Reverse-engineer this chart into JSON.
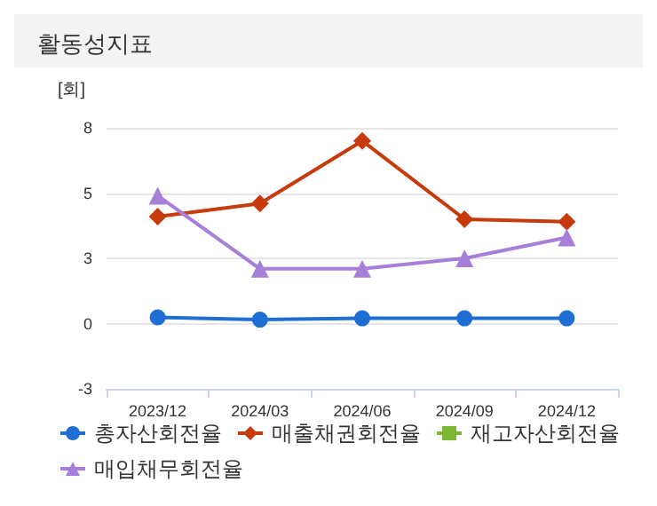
{
  "chart_data": {
    "type": "line",
    "title": "활동성지표",
    "ylabel": "[회]",
    "categories": [
      "2023/12",
      "2024/03",
      "2024/06",
      "2024/09",
      "2024/12"
    ],
    "series": [
      {
        "name": "총자산회전율",
        "color": "#1f6ed4",
        "marker": "circle",
        "values": [
          0.24,
          0.15,
          0.2,
          0.2,
          0.2
        ]
      },
      {
        "name": "매출채권회전율",
        "color": "#c63a0c",
        "marker": "diamond",
        "values": [
          4.1,
          4.6,
          7.0,
          4.0,
          3.9
        ]
      },
      {
        "name": "재고자산회전율",
        "color": "#7cb82f",
        "marker": "square",
        "values": [
          null,
          null,
          null,
          null,
          null
        ]
      },
      {
        "name": "매입채무회전율",
        "color": "#a77fd9",
        "marker": "triangle",
        "values": [
          4.9,
          2.1,
          2.1,
          2.5,
          3.3
        ]
      }
    ],
    "ylim": [
      -2.5,
      7.5
    ],
    "yticks": [
      {
        "value": -2.5,
        "label": "-3"
      },
      {
        "value": 0,
        "label": "0"
      },
      {
        "value": 2.5,
        "label": "3"
      },
      {
        "value": 5,
        "label": "5"
      },
      {
        "value": 7.5,
        "label": "8"
      }
    ],
    "grid": "y",
    "legend": "bottom"
  }
}
